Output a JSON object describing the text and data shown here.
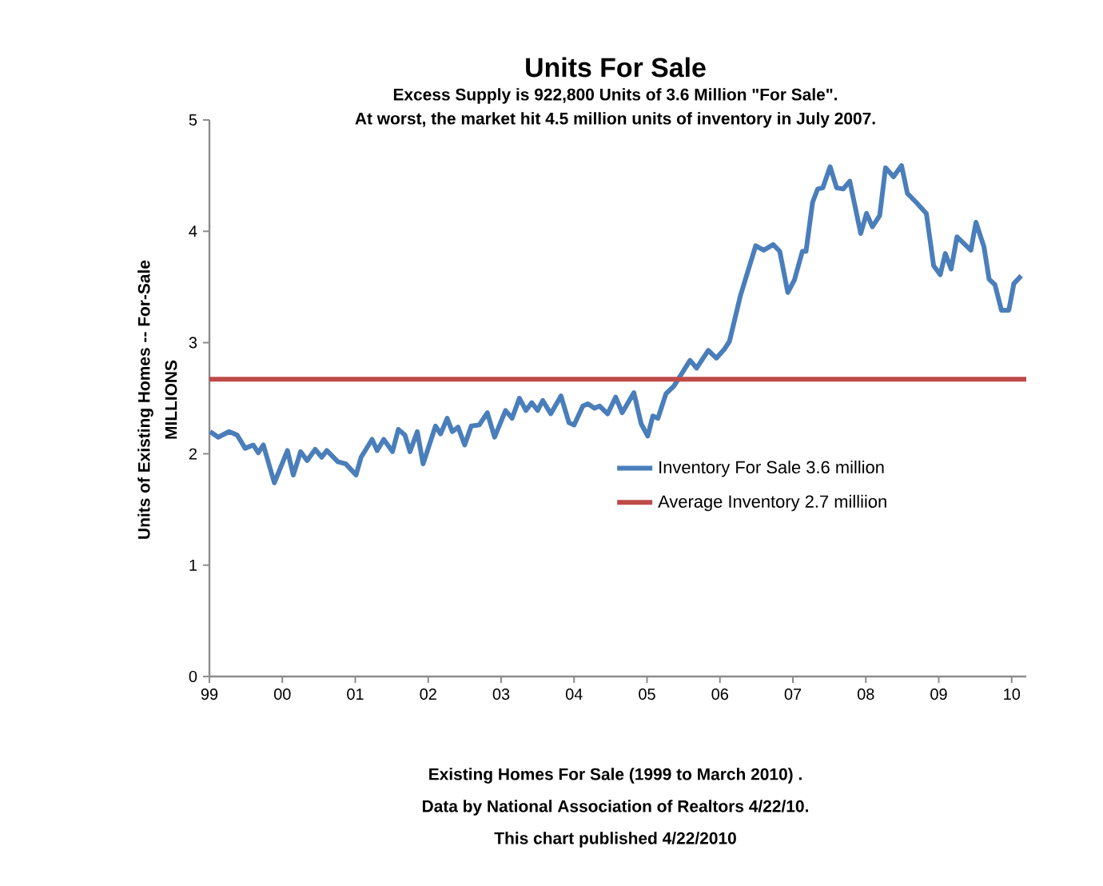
{
  "chart_data": {
    "type": "line",
    "title": "Units For Sale",
    "subtitle": "Excess Supply is 922,800 Units of 3.6 Million \"For Sale\".",
    "ylabel": "Units of Existing Homes -- For-Sale",
    "annotations": [
      "At worst, the market hit 4.5 million units of inventory in July 2007.",
      "MILLIONS",
      "Existing Homes For Sale (1999 to March 2010) .",
      "Data by National Association of Realtors 4/22/10.",
      "This chart published 4/22/2010"
    ],
    "xlim": [
      1999,
      2010.2
    ],
    "xticks": [
      {
        "value": 1999,
        "label": "99"
      },
      {
        "value": 2000,
        "label": "00"
      },
      {
        "value": 2001,
        "label": "01"
      },
      {
        "value": 2002,
        "label": "02"
      },
      {
        "value": 2003,
        "label": "03"
      },
      {
        "value": 2004,
        "label": "04"
      },
      {
        "value": 2005,
        "label": "05"
      },
      {
        "value": 2006,
        "label": "06"
      },
      {
        "value": 2007,
        "label": "07"
      },
      {
        "value": 2008,
        "label": "08"
      },
      {
        "value": 2009,
        "label": "09"
      },
      {
        "value": 2010,
        "label": "10"
      }
    ],
    "ylim": [
      0,
      5
    ],
    "yticks": [
      0,
      1,
      2,
      3,
      4,
      5
    ],
    "grid": false,
    "legend": "right",
    "marker": "none",
    "line_style": "solid",
    "series": [
      {
        "name": "Inventory For Sale 3.6 million",
        "color": "#4a7ebb",
        "x": [
          1999.01,
          1999.12,
          1999.27,
          1999.38,
          1999.49,
          1999.6,
          1999.67,
          1999.74,
          1999.89,
          2000.07,
          2000.15,
          2000.25,
          2000.34,
          2000.45,
          2000.54,
          2000.61,
          2000.76,
          2000.87,
          2001.01,
          2001.08,
          2001.23,
          2001.3,
          2001.39,
          2001.51,
          2001.59,
          2001.68,
          2001.75,
          2001.85,
          2001.93,
          2002.1,
          2002.17,
          2002.26,
          2002.33,
          2002.41,
          2002.5,
          2002.59,
          2002.7,
          2002.81,
          2002.91,
          2003.06,
          2003.15,
          2003.25,
          2003.34,
          2003.42,
          2003.5,
          2003.57,
          2003.68,
          2003.82,
          2003.93,
          2004.0,
          2004.12,
          2004.19,
          2004.28,
          2004.35,
          2004.46,
          2004.57,
          2004.66,
          2004.82,
          2004.92,
          2005.01,
          2005.08,
          2005.15,
          2005.26,
          2005.37,
          2005.59,
          2005.68,
          2005.84,
          2005.95,
          2006.06,
          2006.13,
          2006.28,
          2006.49,
          2006.6,
          2006.73,
          2006.82,
          2006.93,
          2007.02,
          2007.13,
          2007.18,
          2007.27,
          2007.34,
          2007.41,
          2007.51,
          2007.6,
          2007.69,
          2007.78,
          2007.93,
          2008.01,
          2008.09,
          2008.19,
          2008.27,
          2008.38,
          2008.49,
          2008.57,
          2008.69,
          2008.83,
          2008.93,
          2009.02,
          2009.09,
          2009.17,
          2009.25,
          2009.44,
          2009.51,
          2009.62,
          2009.69,
          2009.77,
          2009.86,
          2009.96,
          2010.03,
          2010.13
        ],
        "values": [
          2.2,
          2.15,
          2.2,
          2.17,
          2.05,
          2.08,
          2.01,
          2.08,
          1.74,
          2.03,
          1.81,
          2.02,
          1.94,
          2.04,
          1.97,
          2.03,
          1.93,
          1.91,
          1.81,
          1.97,
          2.13,
          2.03,
          2.13,
          2.02,
          2.22,
          2.17,
          2.02,
          2.2,
          1.91,
          2.25,
          2.18,
          2.32,
          2.2,
          2.24,
          2.08,
          2.25,
          2.26,
          2.37,
          2.15,
          2.39,
          2.32,
          2.5,
          2.39,
          2.46,
          2.39,
          2.48,
          2.36,
          2.52,
          2.28,
          2.26,
          2.43,
          2.45,
          2.41,
          2.43,
          2.36,
          2.51,
          2.37,
          2.55,
          2.27,
          2.16,
          2.34,
          2.32,
          2.54,
          2.61,
          2.84,
          2.77,
          2.93,
          2.86,
          2.94,
          3.01,
          3.42,
          3.87,
          3.83,
          3.88,
          3.82,
          3.45,
          3.56,
          3.82,
          3.82,
          4.26,
          4.38,
          4.39,
          4.58,
          4.39,
          4.38,
          4.45,
          3.98,
          4.16,
          4.04,
          4.14,
          4.57,
          4.49,
          4.59,
          4.34,
          4.26,
          4.16,
          3.69,
          3.61,
          3.8,
          3.66,
          3.95,
          3.83,
          4.08,
          3.86,
          3.57,
          3.52,
          3.29,
          3.29,
          3.53,
          3.6
        ]
      }
    ],
    "ref_lines": [
      {
        "axis": "y",
        "value": 2.67,
        "label": "Average Inventory 2.7 milliion",
        "color": "#be4b48"
      }
    ]
  }
}
